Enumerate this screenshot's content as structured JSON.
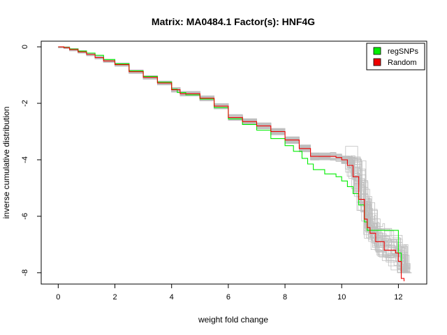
{
  "chart_data": {
    "type": "line",
    "title": "Matrix: MA0484.1 Factor(s): HNF4G",
    "xlabel": "weight fold change",
    "ylabel": "inverse cumulative distribution",
    "xlim": [
      -0.6,
      13.0
    ],
    "ylim": [
      -8.4,
      0.2
    ],
    "xticks": [
      0,
      2,
      4,
      6,
      8,
      10,
      12
    ],
    "yticks": [
      0,
      -2,
      -4,
      -6,
      -8
    ],
    "xtick_labels": [
      "0",
      "2",
      "4",
      "6",
      "8",
      "10",
      "12"
    ],
    "ytick_labels": [
      "0",
      "-2",
      "-4",
      "-6",
      "-8"
    ],
    "legend_position": "top-right",
    "series": [
      {
        "name": "regSNPs",
        "color": "#00ee00",
        "x": [
          0,
          0.2,
          0.4,
          0.7,
          1.0,
          1.3,
          1.6,
          2.0,
          2.5,
          3.0,
          3.5,
          4.0,
          4.2,
          4.5,
          5.0,
          5.5,
          6.0,
          6.5,
          7.0,
          7.5,
          8.0,
          8.3,
          8.6,
          8.8,
          9.0,
          9.4,
          9.8,
          10.0,
          10.2,
          10.4,
          10.6,
          10.8,
          10.9,
          11.0,
          11.5,
          11.9,
          12.0,
          12.1
        ],
        "y": [
          0,
          -0.02,
          -0.08,
          -0.15,
          -0.22,
          -0.3,
          -0.45,
          -0.6,
          -0.85,
          -1.05,
          -1.25,
          -1.5,
          -1.62,
          -1.7,
          -1.85,
          -2.15,
          -2.55,
          -2.75,
          -2.95,
          -3.25,
          -3.5,
          -3.7,
          -3.95,
          -4.15,
          -4.35,
          -4.5,
          -4.6,
          -4.75,
          -4.95,
          -5.2,
          -5.6,
          -6.2,
          -6.5,
          -6.5,
          -6.5,
          -6.5,
          -7.3,
          -8.0
        ]
      },
      {
        "name": "Random",
        "color": "#ee0000",
        "x": [
          0,
          0.2,
          0.4,
          0.7,
          1.0,
          1.3,
          1.6,
          2.0,
          2.5,
          3.0,
          3.5,
          4.0,
          4.3,
          5.0,
          5.5,
          6.0,
          6.5,
          7.0,
          7.5,
          8.0,
          8.5,
          8.9,
          9.2,
          9.6,
          9.8,
          10.0,
          10.2,
          10.4,
          10.6,
          10.8,
          10.9,
          11.0,
          11.2,
          11.5,
          11.9,
          12.0,
          12.1,
          12.2
        ],
        "y": [
          0,
          -0.03,
          -0.1,
          -0.18,
          -0.27,
          -0.38,
          -0.5,
          -0.63,
          -0.88,
          -1.08,
          -1.28,
          -1.52,
          -1.66,
          -1.82,
          -2.1,
          -2.5,
          -2.65,
          -2.8,
          -3.0,
          -3.3,
          -3.6,
          -3.88,
          -3.88,
          -3.88,
          -3.92,
          -4.0,
          -4.2,
          -4.6,
          -5.4,
          -6.1,
          -6.4,
          -6.6,
          -6.9,
          -7.2,
          -7.3,
          -7.6,
          -8.2,
          -8.3
        ]
      }
    ]
  },
  "legend": {
    "items": [
      {
        "label": "regSNPs",
        "color": "#00ee00"
      },
      {
        "label": "Random",
        "color": "#ee0000"
      }
    ]
  },
  "background_lines_color": "#bebebe"
}
